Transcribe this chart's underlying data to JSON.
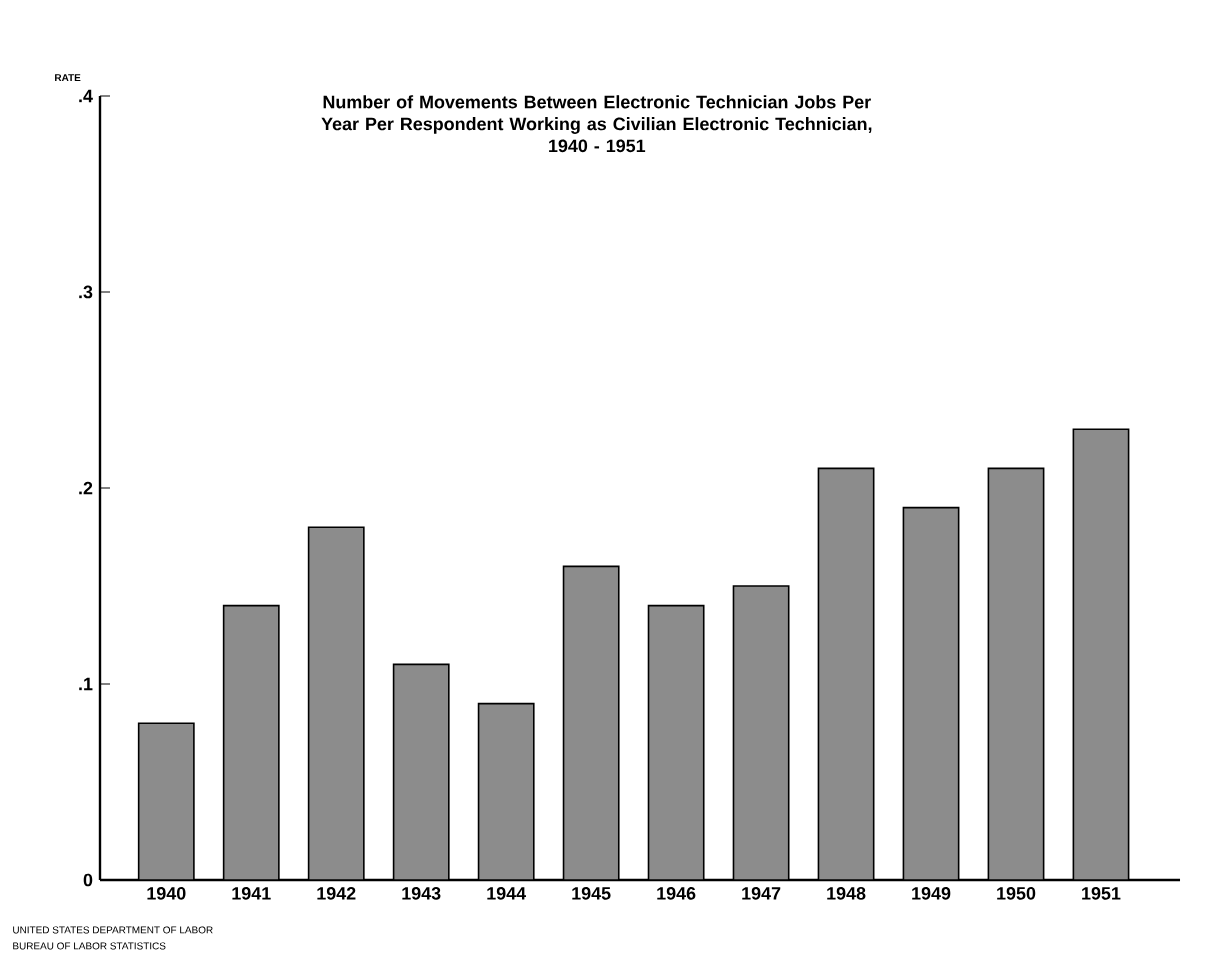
{
  "chart_data": {
    "type": "bar",
    "title": "Number of Movements Between Electronic Technician Jobs Per Year Per Respondent Working as Civilian Electronic Technician,",
    "subtitle": "1940 - 1951",
    "ylabel": "RATE",
    "categories": [
      "1940",
      "1941",
      "1942",
      "1943",
      "1944",
      "1945",
      "1946",
      "1947",
      "1948",
      "1949",
      "1950",
      "1951"
    ],
    "values": [
      0.08,
      0.14,
      0.18,
      0.11,
      0.09,
      0.16,
      0.14,
      0.15,
      0.21,
      0.19,
      0.21,
      0.23
    ],
    "color": "#8c8c8c",
    "ylim": [
      0,
      0.4
    ],
    "yticks": [
      0,
      {
        "value": 0.1,
        "label": ".1"
      },
      {
        "value": 0.2,
        "label": ".2"
      },
      {
        "value": 0.3,
        "label": ".3"
      },
      {
        "value": 0.4,
        "label": ".4"
      }
    ],
    "annotations": [
      "UNITED STATES DEPARTMENT OF LABOR",
      "BUREAU OF LABOR STATISTICS"
    ]
  }
}
